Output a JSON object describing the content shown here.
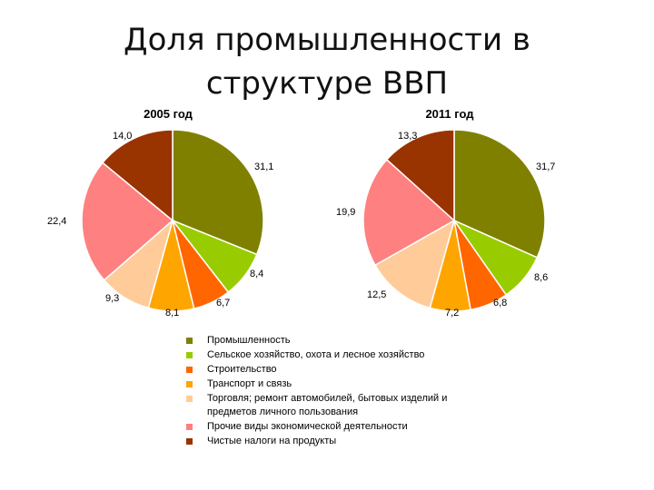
{
  "slide": {
    "title": "Доля промышленности в структуре ВВП"
  },
  "chart_data": [
    {
      "type": "pie",
      "title": "2005 год",
      "categories": [
        "Промышленность",
        "Сельское хозяйство, охота и лесное хозяйство",
        "Строительство",
        "Транспорт и связь",
        "Торговля; ремонт автомобилей, бытовых изделий и предметов личного пользования",
        "Прочие виды экономической деятельности",
        "Чистые налоги на продукты"
      ],
      "values": [
        31.1,
        8.4,
        6.7,
        8.1,
        9.3,
        22.4,
        14.0
      ],
      "labels": [
        "31,1",
        "8,4",
        "6,7",
        "8,1",
        "9,3",
        "22,4",
        "14,0"
      ],
      "legend_position": "bottom"
    },
    {
      "type": "pie",
      "title": "2011 год",
      "categories": [
        "Промышленность",
        "Сельское хозяйство, охота и лесное хозяйство",
        "Строительство",
        "Транспорт и связь",
        "Торговля; ремонт автомобилей, бытовых изделий и предметов личного пользования",
        "Прочие виды экономической деятельности",
        "Чистые налоги на продукты"
      ],
      "values": [
        31.7,
        8.6,
        6.8,
        7.2,
        12.5,
        19.9,
        13.3
      ],
      "labels": [
        "31,7",
        "8,6",
        "6,8",
        "7,2",
        "12,5",
        "19,9",
        "13,3"
      ],
      "legend_position": "bottom"
    }
  ],
  "legend": [
    {
      "label": "Промышленность",
      "color": "#808000"
    },
    {
      "label": "Сельское хозяйство, охота и лесное хозяйство",
      "color": "#99cc00"
    },
    {
      "label": "Строительство",
      "color": "#ff6600"
    },
    {
      "label": "Транспорт и связь",
      "color": "#ffa500"
    },
    {
      "label": "Торговля; ремонт автомобилей, бытовых изделий и предметов личного пользования",
      "color": "#ffcc99"
    },
    {
      "label": "Прочие виды экономической деятельности",
      "color": "#ff8080"
    },
    {
      "label": "Чистые налоги на продукты",
      "color": "#993300"
    }
  ]
}
